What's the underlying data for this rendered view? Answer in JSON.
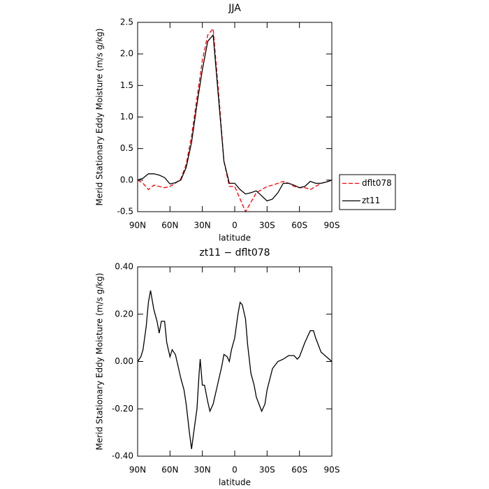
{
  "chart_data": [
    {
      "type": "line",
      "title": "JJA",
      "xlabel": "latitude",
      "ylabel": "Merid Stationary Eddy Moisture (m/s g/kg)",
      "x": [
        90,
        85,
        80,
        75,
        70,
        65,
        60,
        55,
        50,
        45,
        40,
        35,
        30,
        25,
        20,
        15,
        10,
        5,
        0,
        -5,
        -10,
        -15,
        -20,
        -25,
        -30,
        -35,
        -40,
        -45,
        -50,
        -55,
        -60,
        -65,
        -70,
        -75,
        -80,
        -85,
        -90
      ],
      "series": [
        {
          "name": "dflt078",
          "color": "#ff0000",
          "dashed": true,
          "values": [
            0,
            -0.05,
            -0.15,
            -0.08,
            -0.1,
            -0.12,
            -0.1,
            -0.05,
            0.02,
            0.25,
            0.7,
            1.3,
            1.9,
            2.3,
            2.4,
            1.4,
            0.3,
            -0.1,
            -0.1,
            -0.3,
            -0.5,
            -0.35,
            -0.2,
            -0.15,
            -0.1,
            -0.08,
            -0.05,
            -0.02,
            -0.05,
            -0.1,
            -0.12,
            -0.12,
            -0.15,
            -0.1,
            -0.05,
            -0.03,
            0
          ]
        },
        {
          "name": "zt11",
          "color": "#000000",
          "dashed": false,
          "values": [
            0,
            0.03,
            0.1,
            0.1,
            0.08,
            0.04,
            -0.06,
            -0.04,
            0,
            0.2,
            0.6,
            1.2,
            1.75,
            2.2,
            2.3,
            1.3,
            0.3,
            -0.05,
            -0.05,
            -0.15,
            -0.22,
            -0.2,
            -0.17,
            -0.25,
            -0.33,
            -0.3,
            -0.2,
            -0.05,
            -0.05,
            -0.08,
            -0.12,
            -0.1,
            -0.02,
            -0.05,
            -0.05,
            -0.03,
            0
          ]
        }
      ],
      "xlim": [
        90,
        -90
      ],
      "xticks": [
        {
          "value": 90,
          "label": "90N"
        },
        {
          "value": 60,
          "label": "60N"
        },
        {
          "value": 30,
          "label": "30N"
        },
        0,
        {
          "value": -30,
          "label": "30S"
        },
        {
          "value": -60,
          "label": "60S"
        },
        {
          "value": -90,
          "label": "90S"
        }
      ],
      "ylim": [
        -0.5,
        2.5
      ],
      "yticks": [
        -0.5,
        {
          "value": 0,
          "label": "0.0"
        },
        0.5,
        {
          "value": 1,
          "label": "1.0"
        },
        1.5,
        {
          "value": 2,
          "label": "2.0"
        },
        2.5
      ],
      "legend": "outside-right"
    },
    {
      "type": "line",
      "title": "zt11 − dflt078",
      "xlabel": "latitude",
      "ylabel": "Merid Stationary Eddy Moisture (m/s g/kg)",
      "x": [
        90,
        87,
        85,
        82,
        80,
        78,
        75,
        72,
        70,
        68,
        65,
        63,
        60,
        58,
        55,
        50,
        47,
        45,
        42,
        40,
        38,
        35,
        33,
        32,
        30,
        28,
        25,
        23,
        20,
        17,
        15,
        12,
        10,
        7,
        5,
        3,
        0,
        -3,
        -5,
        -7,
        -10,
        -12,
        -15,
        -18,
        -20,
        -25,
        -28,
        -30,
        -35,
        -40,
        -45,
        -50,
        -55,
        -58,
        -60,
        -65,
        -70,
        -73,
        -75,
        -80,
        -85,
        -90
      ],
      "color": "#000000",
      "values": [
        0,
        0.02,
        0.05,
        0.15,
        0.25,
        0.3,
        0.22,
        0.17,
        0.12,
        0.17,
        0.17,
        0.08,
        0.02,
        0.05,
        0.03,
        -0.07,
        -0.12,
        -0.18,
        -0.3,
        -0.37,
        -0.3,
        -0.2,
        -0.05,
        0.01,
        -0.1,
        -0.1,
        -0.17,
        -0.21,
        -0.18,
        -0.12,
        -0.08,
        -0.02,
        0.03,
        0.02,
        0,
        0.05,
        0.1,
        0.2,
        0.25,
        0.24,
        0.18,
        0.07,
        -0.05,
        -0.1,
        -0.15,
        -0.21,
        -0.18,
        -0.12,
        -0.03,
        0,
        0.01,
        0.025,
        0.025,
        0.01,
        0.02,
        0.08,
        0.13,
        0.13,
        0.1,
        0.04,
        0.02,
        0
      ],
      "xlim": [
        90,
        -90
      ],
      "xticks": [
        {
          "value": 90,
          "label": "90N"
        },
        {
          "value": 60,
          "label": "60N"
        },
        {
          "value": 30,
          "label": "30N"
        },
        0,
        {
          "value": -30,
          "label": "30S"
        },
        {
          "value": -60,
          "label": "60S"
        },
        {
          "value": -90,
          "label": "90S"
        }
      ],
      "ylim": [
        -0.4,
        0.4
      ],
      "yticks": [
        {
          "value": -0.4,
          "label": "-0.40"
        },
        {
          "value": -0.2,
          "label": "-0.20"
        },
        {
          "value": 0,
          "label": "0.00"
        },
        {
          "value": 0.2,
          "label": "0.20"
        },
        {
          "value": 0.4,
          "label": "0.40"
        }
      ]
    }
  ]
}
